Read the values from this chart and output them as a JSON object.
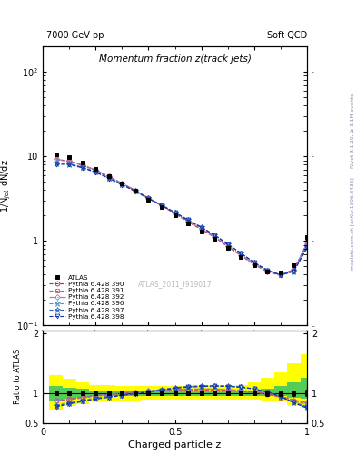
{
  "title": "Momentum fraction z(track jets)",
  "top_left_label": "7000 GeV pp",
  "top_right_label": "Soft QCD",
  "right_label_top": "Rivet 3.1.10, ≥ 3.1M events",
  "right_label_bottom": "mcplots.cern.ch [arXiv:1306.3436]",
  "watermark": "ATLAS_2011_I919017",
  "ylabel_main": "1/N$_{jet}$ dN/dz",
  "ylabel_ratio": "Ratio to ATLAS",
  "xlabel": "Charged particle z",
  "xlim": [
    0.0,
    1.0
  ],
  "ylim_main": [
    0.1,
    200
  ],
  "ylim_ratio": [
    0.5,
    2.05
  ],
  "x_centers": [
    0.05,
    0.1,
    0.15,
    0.2,
    0.25,
    0.3,
    0.35,
    0.4,
    0.45,
    0.5,
    0.55,
    0.6,
    0.65,
    0.7,
    0.75,
    0.8,
    0.85,
    0.9,
    0.95,
    1.0
  ],
  "atlas_y": [
    10.5,
    9.8,
    8.5,
    7.2,
    5.9,
    4.8,
    3.9,
    3.1,
    2.5,
    2.0,
    1.6,
    1.3,
    1.05,
    0.82,
    0.65,
    0.52,
    0.44,
    0.42,
    0.52,
    1.1
  ],
  "atlas_yerr": [
    0.3,
    0.25,
    0.22,
    0.18,
    0.15,
    0.12,
    0.1,
    0.08,
    0.07,
    0.06,
    0.05,
    0.04,
    0.035,
    0.028,
    0.023,
    0.02,
    0.018,
    0.018,
    0.022,
    0.06
  ],
  "atlas_color": "#000000",
  "yellow_lo": [
    0.72,
    0.78,
    0.82,
    0.86,
    0.88,
    0.88,
    0.88,
    0.89,
    0.89,
    0.89,
    0.89,
    0.89,
    0.89,
    0.89,
    0.89,
    0.89,
    0.88,
    0.88,
    0.8,
    0.75
  ],
  "yellow_hi": [
    1.3,
    1.24,
    1.18,
    1.14,
    1.13,
    1.12,
    1.12,
    1.12,
    1.12,
    1.12,
    1.12,
    1.12,
    1.12,
    1.12,
    1.14,
    1.18,
    1.25,
    1.35,
    1.5,
    1.65
  ],
  "green_lo": [
    0.88,
    0.91,
    0.93,
    0.95,
    0.95,
    0.95,
    0.95,
    0.95,
    0.95,
    0.95,
    0.95,
    0.95,
    0.95,
    0.95,
    0.95,
    0.95,
    0.95,
    0.95,
    0.93,
    0.9
  ],
  "green_hi": [
    1.12,
    1.09,
    1.07,
    1.05,
    1.05,
    1.05,
    1.05,
    1.05,
    1.05,
    1.05,
    1.05,
    1.05,
    1.05,
    1.05,
    1.05,
    1.05,
    1.08,
    1.12,
    1.18,
    1.25
  ],
  "mc_lines": [
    {
      "label": "Pythia 6.428 390",
      "color": "#cc2222",
      "linestyle": "--",
      "marker": "o",
      "ms": 3.5,
      "ratio": [
        0.88,
        0.9,
        0.93,
        0.96,
        0.98,
        1.0,
        1.02,
        1.03,
        1.05,
        1.06,
        1.06,
        1.06,
        1.06,
        1.05,
        1.04,
        1.02,
        0.99,
        0.95,
        0.88,
        0.85
      ]
    },
    {
      "label": "Pythia 6.428 391",
      "color": "#cc5555",
      "linestyle": "--",
      "marker": "s",
      "ms": 3.5,
      "ratio": [
        0.87,
        0.89,
        0.92,
        0.95,
        0.97,
        0.99,
        1.01,
        1.02,
        1.04,
        1.05,
        1.05,
        1.05,
        1.05,
        1.04,
        1.03,
        1.01,
        0.98,
        0.93,
        0.86,
        0.82
      ]
    },
    {
      "label": "Pythia 6.428 392",
      "color": "#9977cc",
      "linestyle": "-.",
      "marker": "D",
      "ms": 3.0,
      "ratio": [
        0.88,
        0.9,
        0.93,
        0.96,
        0.98,
        1.0,
        1.02,
        1.04,
        1.05,
        1.06,
        1.07,
        1.07,
        1.07,
        1.06,
        1.05,
        1.03,
        1.0,
        0.95,
        0.88,
        0.84
      ]
    },
    {
      "label": "Pythia 6.428 396",
      "color": "#4499cc",
      "linestyle": "--",
      "marker": "*",
      "ms": 5,
      "ratio": [
        0.8,
        0.84,
        0.88,
        0.92,
        0.95,
        0.97,
        1.0,
        1.03,
        1.06,
        1.09,
        1.11,
        1.12,
        1.12,
        1.12,
        1.1,
        1.07,
        1.02,
        0.95,
        0.85,
        0.78
      ]
    },
    {
      "label": "Pythia 6.428 397",
      "color": "#3366bb",
      "linestyle": "--",
      "marker": "*",
      "ms": 5,
      "ratio": [
        0.79,
        0.83,
        0.87,
        0.91,
        0.94,
        0.97,
        1.0,
        1.03,
        1.06,
        1.09,
        1.11,
        1.12,
        1.12,
        1.12,
        1.1,
        1.07,
        1.02,
        0.95,
        0.84,
        0.77
      ]
    },
    {
      "label": "Pythia 6.428 398",
      "color": "#1133aa",
      "linestyle": "--",
      "marker": "v",
      "ms": 3.5,
      "ratio": [
        0.77,
        0.82,
        0.86,
        0.9,
        0.93,
        0.96,
        0.99,
        1.02,
        1.05,
        1.08,
        1.1,
        1.11,
        1.12,
        1.11,
        1.1,
        1.07,
        1.02,
        0.94,
        0.84,
        0.75
      ]
    }
  ]
}
